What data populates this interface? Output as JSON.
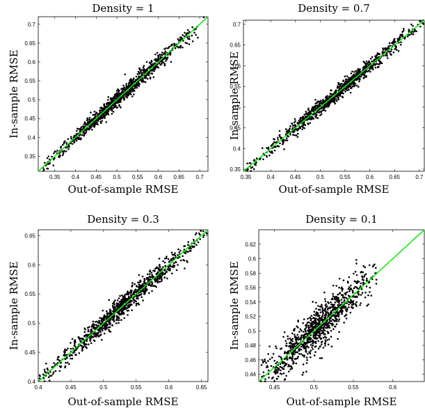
{
  "chart_data": [
    {
      "type": "scatter",
      "title": "Density = 1",
      "xlabel": "Out-of-sample RMSE",
      "ylabel": "In-sample RMSE",
      "xlim": [
        0.31,
        0.72
      ],
      "ylim": [
        0.31,
        0.72
      ],
      "xticks": [
        0.35,
        0.4,
        0.45,
        0.5,
        0.55,
        0.6,
        0.65,
        0.7
      ],
      "yticks": [
        0.35,
        0.4,
        0.45,
        0.5,
        0.55,
        0.6,
        0.65,
        0.7
      ],
      "xtick_labels": [
        "0.35",
        "0.4",
        "0.45",
        "0.5",
        "0.55",
        "0.6",
        "0.65",
        "0.7"
      ],
      "ytick_labels": [
        "0.35",
        "0.4",
        "0.45",
        "0.5",
        "0.55",
        "0.6",
        "0.65",
        "0.7"
      ],
      "diagonal": {
        "from": [
          0.31,
          0.31
        ],
        "to": [
          0.72,
          0.72
        ],
        "color": "#19e619"
      },
      "points_summary": {
        "n": 1000,
        "x_range": [
          0.32,
          0.71
        ],
        "residual_sd": 0.01
      },
      "point_color": "#000000"
    },
    {
      "type": "scatter",
      "title": "Density = 0.7",
      "xlabel": "Out-of-sample RMSE",
      "ylabel": "In-sample RMSE",
      "xlim": [
        0.345,
        0.71
      ],
      "ylim": [
        0.345,
        0.71
      ],
      "xticks": [
        0.35,
        0.4,
        0.45,
        0.5,
        0.55,
        0.6,
        0.65,
        0.7
      ],
      "yticks": [
        0.35,
        0.4,
        0.45,
        0.5,
        0.55,
        0.6,
        0.65,
        0.7
      ],
      "xtick_labels": [
        "0.35",
        "0.4",
        "0.45",
        "0.5",
        "0.55",
        "0.6",
        "0.65",
        "0.7"
      ],
      "ytick_labels": [
        "0.35",
        "0.4",
        "0.45",
        "0.5",
        "0.55",
        "0.6",
        "0.65",
        "0.7"
      ],
      "diagonal": {
        "from": [
          0.345,
          0.345
        ],
        "to": [
          0.71,
          0.71
        ],
        "color": "#19e619"
      },
      "points_summary": {
        "n": 1000,
        "x_range": [
          0.35,
          0.71
        ],
        "residual_sd": 0.009
      },
      "point_color": "#000000"
    },
    {
      "type": "scatter",
      "title": "Density = 0.3",
      "xlabel": "Out-of-sample RMSE",
      "ylabel": "In-sample RMSE",
      "xlim": [
        0.4,
        0.66
      ],
      "ylim": [
        0.4,
        0.66
      ],
      "xticks": [
        0.4,
        0.45,
        0.5,
        0.55,
        0.6,
        0.65
      ],
      "yticks": [
        0.4,
        0.45,
        0.5,
        0.55,
        0.6,
        0.65
      ],
      "xtick_labels": [
        "0.4",
        "0.45",
        "0.5",
        "0.55",
        "0.6",
        "0.65"
      ],
      "ytick_labels": [
        "0.4",
        "0.45",
        "0.5",
        "0.55",
        "0.6",
        "0.65"
      ],
      "diagonal": {
        "from": [
          0.4,
          0.4
        ],
        "to": [
          0.66,
          0.66
        ],
        "color": "#19e619"
      },
      "points_summary": {
        "n": 1000,
        "x_range": [
          0.4,
          0.66
        ],
        "residual_sd": 0.009
      },
      "point_color": "#000000"
    },
    {
      "type": "scatter",
      "title": "Density = 0.1",
      "xlabel": "Out-of-sample RMSE",
      "ylabel": "In-sample RMSE",
      "xlim": [
        0.43,
        0.64
      ],
      "ylim": [
        0.43,
        0.64
      ],
      "xticks": [
        0.45,
        0.5,
        0.55,
        0.6
      ],
      "yticks": [
        0.44,
        0.46,
        0.48,
        0.5,
        0.52,
        0.54,
        0.56,
        0.58,
        0.6,
        0.62
      ],
      "xtick_labels": [
        "0.45",
        "0.5",
        "0.55",
        "0.6"
      ],
      "ytick_labels": [
        "0.44",
        "0.46",
        "0.48",
        "0.5",
        "0.52",
        "0.54",
        "0.56",
        "0.58",
        "0.6",
        "0.62"
      ],
      "diagonal": {
        "from": [
          0.43,
          0.43
        ],
        "to": [
          0.64,
          0.64
        ],
        "color": "#19e619"
      },
      "points_summary": {
        "n": 1000,
        "x_range": [
          0.43,
          0.58
        ],
        "residual_sd": 0.015
      },
      "point_color": "#000000"
    }
  ]
}
